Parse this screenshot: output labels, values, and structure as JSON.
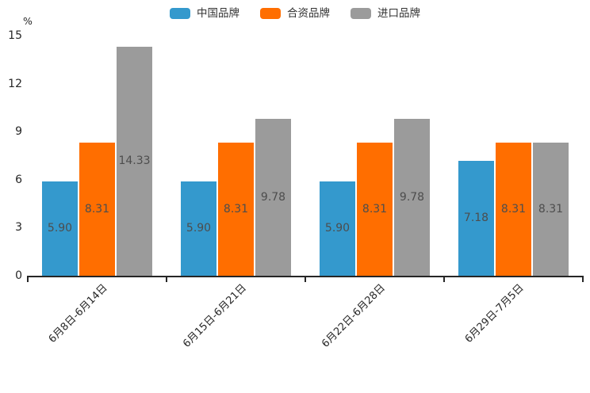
{
  "chart_data": {
    "type": "bar",
    "title": "",
    "xlabel": "",
    "ylabel": "%",
    "categories": [
      "6月8日-6月14日",
      "6月15日-6月21日",
      "6月22日-6月28日",
      "6月29日-7月5日"
    ],
    "series": [
      {
        "name": "中国品牌",
        "color": "#3499CD",
        "values": [
          5.9,
          5.9,
          5.9,
          7.18
        ]
      },
      {
        "name": "合资品牌",
        "color": "#FF6E00",
        "values": [
          8.31,
          8.31,
          8.31,
          8.31
        ]
      },
      {
        "name": "进口品牌",
        "color": "#9B9B9B",
        "values": [
          14.33,
          9.78,
          9.78,
          8.31
        ]
      }
    ],
    "value_labels": [
      [
        "5.90",
        "5.90",
        "5.90",
        "7.18"
      ],
      [
        "8.31",
        "8.31",
        "8.31",
        "8.31"
      ],
      [
        "14.33",
        "9.78",
        "9.78",
        "8.31"
      ]
    ],
    "yticks": [
      "0",
      "3",
      "6",
      "9",
      "12",
      "15"
    ],
    "ylim": [
      0,
      15
    ],
    "grid": false,
    "legend_position": "top",
    "x_label_rotation_deg": 45,
    "axis_color": "#262626",
    "value_label_color": "#4d4d4d"
  }
}
